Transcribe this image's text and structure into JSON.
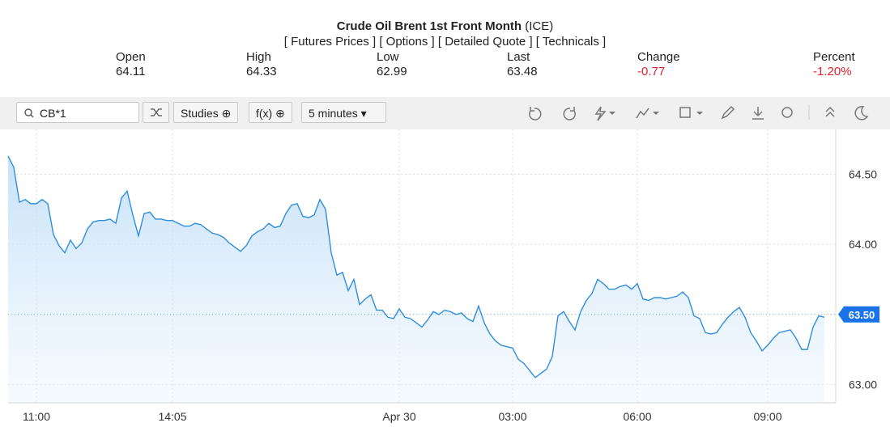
{
  "header": {
    "title": "Crude Oil Brent 1st Front Month",
    "exchange": "(ICE)",
    "links": [
      "[ Futures Prices ]",
      "[ Options ]",
      "[ Detailed Quote ]",
      "[ Technicals ]"
    ]
  },
  "quote": [
    {
      "label": "Open",
      "value": "64.11"
    },
    {
      "label": "High",
      "value": "64.33"
    },
    {
      "label": "Low",
      "value": "62.99"
    },
    {
      "label": "Last",
      "value": "63.48"
    },
    {
      "label": "Change",
      "value": "-0.77"
    },
    {
      "label": "Percent",
      "value": "-1.20%"
    }
  ],
  "toolbar": {
    "symbol": "CB*1",
    "studies": "Studies",
    "fx": "f(x)",
    "interval": "5 minutes"
  },
  "chart_data": {
    "type": "line",
    "categories": [
      null,
      null,
      null,
      null,
      null,
      "11:00",
      null,
      null,
      null,
      null,
      null,
      null,
      null,
      null,
      null,
      null,
      null,
      null,
      null,
      null,
      null,
      null,
      null,
      null,
      null,
      null,
      null,
      null,
      null,
      "14:05",
      null,
      null,
      null,
      null,
      null,
      null,
      null,
      null,
      null,
      null,
      null,
      null,
      null,
      null,
      null,
      null,
      null,
      null,
      null,
      null,
      null,
      null,
      null,
      null,
      null,
      null,
      null,
      null,
      null,
      null,
      null,
      null,
      null,
      null,
      null,
      null,
      null,
      null,
      null,
      "Apr 30",
      null,
      null,
      null,
      null,
      null,
      null,
      null,
      null,
      null,
      null,
      null,
      null,
      null,
      null,
      null,
      null,
      null,
      null,
      null,
      "03:00",
      null,
      null,
      null,
      null,
      null,
      null,
      null,
      null,
      null,
      null,
      null,
      null,
      null,
      null,
      null,
      null,
      null,
      null,
      null,
      null,
      null,
      "06:00",
      null,
      null,
      null,
      null,
      null,
      null,
      null,
      null,
      null,
      null,
      null,
      null,
      null,
      null,
      null,
      null,
      null,
      null,
      null,
      null,
      null,
      null,
      "09:00",
      null,
      null,
      null,
      null,
      null,
      null,
      null,
      null,
      null,
      null
    ],
    "series": [
      {
        "color": "#2f8edb",
        "values": [
          64.63,
          64.55,
          64.3,
          64.32,
          64.29,
          64.29,
          64.32,
          64.29,
          64.07,
          63.99,
          63.94,
          64.03,
          63.97,
          64.01,
          64.11,
          64.16,
          64.17,
          64.17,
          64.18,
          64.15,
          64.33,
          64.38,
          64.21,
          64.06,
          64.22,
          64.23,
          64.18,
          64.18,
          64.17,
          64.17,
          64.15,
          64.13,
          64.13,
          64.15,
          64.14,
          64.11,
          64.08,
          64.07,
          64.05,
          64.01,
          63.98,
          63.95,
          63.99,
          64.06,
          64.09,
          64.11,
          64.15,
          64.12,
          64.13,
          64.22,
          64.28,
          64.29,
          64.2,
          64.19,
          64.21,
          64.32,
          64.25,
          63.94,
          63.78,
          63.8,
          63.67,
          63.75,
          63.57,
          63.61,
          63.64,
          63.53,
          63.53,
          63.48,
          63.47,
          63.54,
          63.48,
          63.47,
          63.44,
          63.41,
          63.46,
          63.52,
          63.5,
          63.53,
          63.52,
          63.5,
          63.51,
          63.47,
          63.45,
          63.56,
          63.44,
          63.36,
          63.31,
          63.28,
          63.27,
          63.26,
          63.18,
          63.15,
          63.1,
          63.05,
          63.08,
          63.11,
          63.2,
          63.49,
          63.52,
          63.45,
          63.39,
          63.52,
          63.6,
          63.65,
          63.75,
          63.72,
          63.68,
          63.68,
          63.7,
          63.71,
          63.68,
          63.72,
          63.61,
          63.6,
          63.62,
          63.62,
          63.61,
          63.62,
          63.63,
          63.66,
          63.62,
          63.49,
          63.47,
          63.37,
          63.36,
          63.37,
          63.43,
          63.48,
          63.52,
          63.55,
          63.48,
          63.37,
          63.31,
          63.24,
          63.28,
          63.33,
          63.37,
          63.38,
          63.39,
          63.33,
          63.25,
          63.25,
          63.41,
          63.49,
          63.48
        ]
      }
    ],
    "ylim": [
      62.87,
      64.82
    ],
    "yticks": [
      {
        "value": 63,
        "label": "63.00"
      },
      {
        "value": 63.5,
        "label": "63.50"
      },
      {
        "value": 64,
        "label": "64.00"
      },
      {
        "value": 64.5,
        "label": "64.50"
      }
    ],
    "current_price": {
      "value": 63.5,
      "label": "63.50"
    },
    "grid": true
  }
}
